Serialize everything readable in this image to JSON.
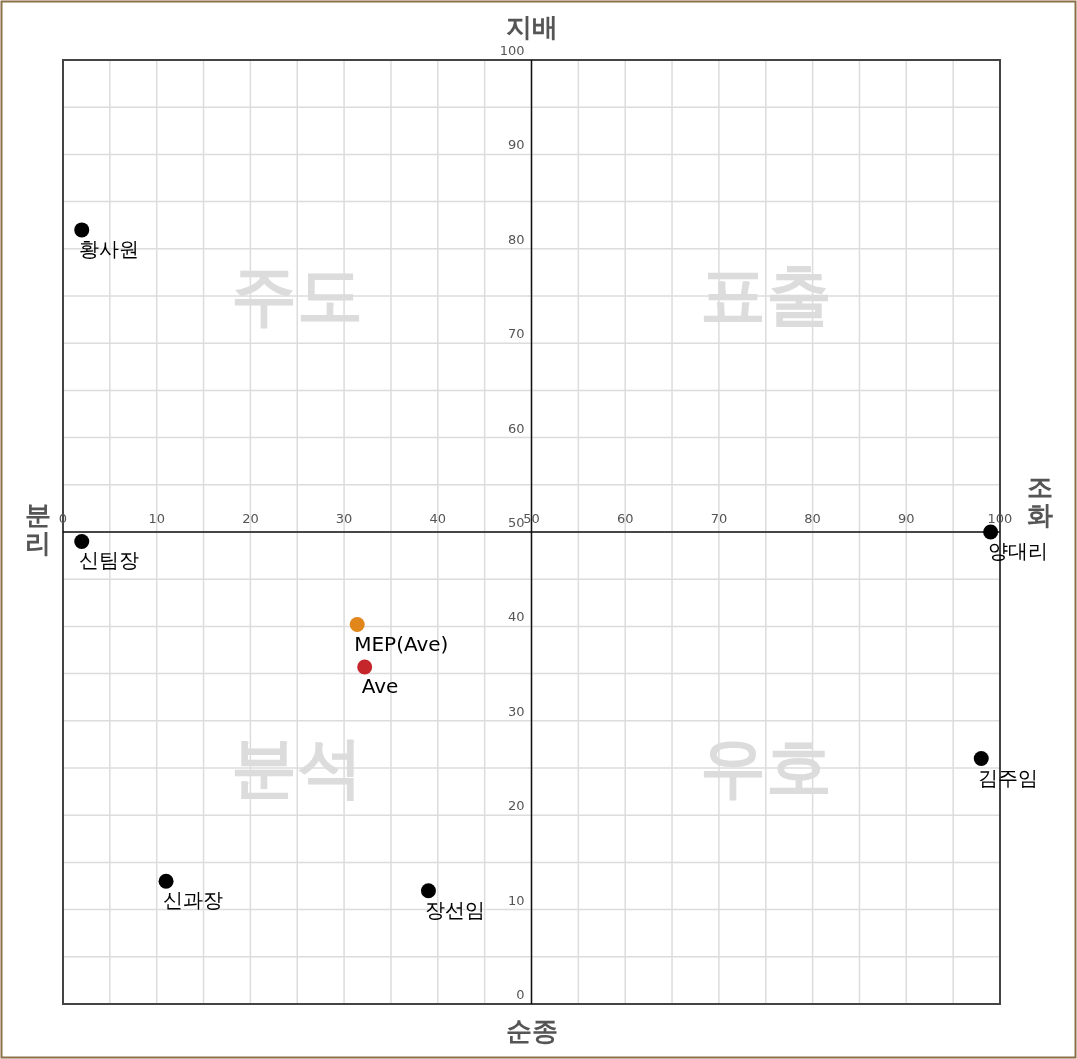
{
  "chart_data": {
    "type": "scatter",
    "xlim": [
      0,
      100
    ],
    "ylim": [
      0,
      100
    ],
    "xticks": [
      0,
      {
        "value": 5,
        "label": null
      },
      10,
      {
        "value": 15,
        "label": null
      },
      20,
      {
        "value": 25,
        "label": null
      },
      30,
      {
        "value": 35,
        "label": null
      },
      40,
      {
        "value": 45,
        "label": null
      },
      50,
      {
        "value": 55,
        "label": null
      },
      60,
      {
        "value": 65,
        "label": null
      },
      70,
      {
        "value": 75,
        "label": null
      },
      80,
      {
        "value": 85,
        "label": null
      },
      90,
      {
        "value": 95,
        "label": null
      },
      100
    ],
    "yticks": [
      0,
      {
        "value": 5,
        "label": null
      },
      10,
      {
        "value": 15,
        "label": null
      },
      20,
      {
        "value": 25,
        "label": null
      },
      30,
      {
        "value": 35,
        "label": null
      },
      40,
      {
        "value": 45,
        "label": null
      },
      50,
      {
        "value": 55,
        "label": null
      },
      60,
      {
        "value": 65,
        "label": null
      },
      70,
      {
        "value": 75,
        "label": null
      },
      80,
      {
        "value": 85,
        "label": null
      },
      90,
      {
        "value": 95,
        "label": null
      },
      100
    ],
    "grid": true,
    "marker": "circle",
    "series": [
      {
        "name": "황사원",
        "color": "#000000",
        "x": [
          2
        ],
        "values": [
          82
        ]
      },
      {
        "name": "신팀장",
        "color": "#000000",
        "x": [
          2
        ],
        "values": [
          49
        ]
      },
      {
        "name": "양대리",
        "color": "#000000",
        "x": [
          99
        ],
        "values": [
          50
        ]
      },
      {
        "name": "김주임",
        "color": "#000000",
        "x": [
          98
        ],
        "values": [
          26
        ]
      },
      {
        "name": "신과장",
        "color": "#000000",
        "x": [
          11
        ],
        "values": [
          13
        ]
      },
      {
        "name": "장선임",
        "color": "#000000",
        "x": [
          39
        ],
        "values": [
          12
        ]
      },
      {
        "name": "MEP(Ave)",
        "color": "#e0861a",
        "x": [
          31.4
        ],
        "values": [
          40.2
        ]
      },
      {
        "name": "Ave",
        "color": "#c4262b",
        "x": [
          32.2
        ],
        "values": [
          35.7
        ]
      }
    ],
    "annotations": [
      "지배",
      "순종",
      "분리",
      "조화",
      "주도",
      "표출",
      "분석",
      "우호"
    ]
  }
}
